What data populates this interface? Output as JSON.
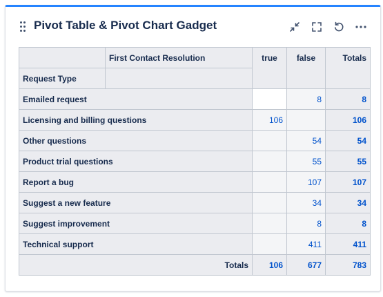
{
  "gadget": {
    "title": "Pivot Table & Pivot Chart Gadget",
    "icons": [
      "drag-handle-icon",
      "minimize-icon",
      "fullscreen-icon",
      "refresh-icon",
      "more-icon"
    ]
  },
  "pivot": {
    "column_field": "First Contact Resolution",
    "row_field": "Request Type",
    "columns": [
      "true",
      "false",
      "Totals"
    ],
    "rows": [
      {
        "label": "Emailed request",
        "true": "",
        "false": "8",
        "total": "8"
      },
      {
        "label": "Licensing and billing questions",
        "true": "106",
        "false": "",
        "total": "106"
      },
      {
        "label": "Other questions",
        "true": "",
        "false": "54",
        "total": "54"
      },
      {
        "label": "Product trial questions",
        "true": "",
        "false": "55",
        "total": "55"
      },
      {
        "label": "Report a bug",
        "true": "",
        "false": "107",
        "total": "107"
      },
      {
        "label": "Suggest a new feature",
        "true": "",
        "false": "34",
        "total": "34"
      },
      {
        "label": "Suggest improvement",
        "true": "",
        "false": "8",
        "total": "8"
      },
      {
        "label": "Technical support",
        "true": "",
        "false": "411",
        "total": "411"
      }
    ],
    "totals": {
      "label": "Totals",
      "true": "106",
      "false": "677",
      "total": "783"
    }
  },
  "colors": {
    "accent": "#2684ff",
    "link": "#0052cc",
    "header_bg": "#ebecf0",
    "cell_bg": "#f4f5f7"
  }
}
